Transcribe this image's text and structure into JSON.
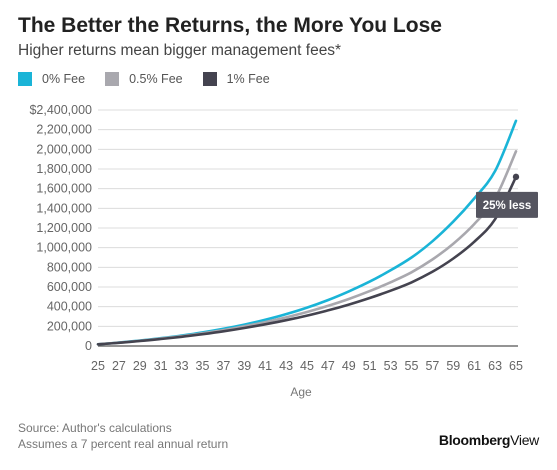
{
  "header": {
    "title": "The Better the Returns, the More You Lose",
    "subtitle": "Higher returns mean bigger management fees*"
  },
  "chart_data": {
    "type": "line",
    "title": "The Better the Returns, the More You Lose",
    "subtitle": "Higher returns mean bigger management fees*",
    "xlabel": "Age",
    "ylabel": "",
    "x": [
      25,
      27,
      29,
      31,
      33,
      35,
      37,
      39,
      41,
      43,
      45,
      47,
      49,
      51,
      53,
      55,
      57,
      59,
      61,
      63,
      65
    ],
    "xlim": [
      25,
      65
    ],
    "ylim": [
      0,
      2400000
    ],
    "y_ticks": [
      0,
      200000,
      400000,
      600000,
      800000,
      1000000,
      1200000,
      1400000,
      1600000,
      1800000,
      2000000,
      2200000,
      2400000
    ],
    "y_tick_labels": [
      "0",
      "200,000",
      "400,000",
      "600,000",
      "800,000",
      "1,000,000",
      "1,200,000",
      "1,400,000",
      "1,600,000",
      "1,800,000",
      "2,000,000",
      "2,200,000",
      "$2,400,000"
    ],
    "x_tick_labels": [
      "25",
      "27",
      "29",
      "31",
      "33",
      "35",
      "37",
      "39",
      "41",
      "43",
      "45",
      "47",
      "49",
      "51",
      "53",
      "55",
      "57",
      "59",
      "61",
      "63",
      "65"
    ],
    "grid": "horizontal",
    "legend_position": "top-left",
    "series": [
      {
        "name": "0% Fee",
        "color": "#1ab4d7",
        "values": [
          17000,
          35000,
          55000,
          79000,
          106000,
          138000,
          175000,
          218000,
          267000,
          324000,
          390000,
          467000,
          555000,
          655000,
          770000,
          900000,
          1065000,
          1265000,
          1500000,
          1780000,
          2290000
        ]
      },
      {
        "name": "0.5% Fee",
        "color": "#a9a8ae",
        "values": [
          17000,
          34000,
          53000,
          75000,
          100000,
          129000,
          162000,
          200000,
          243000,
          291000,
          346000,
          408000,
          478000,
          558000,
          648000,
          750000,
          880000,
          1040000,
          1240000,
          1500000,
          1980000
        ]
      },
      {
        "name": "1% Fee",
        "color": "#44434f",
        "values": [
          17000,
          33000,
          51000,
          71000,
          94000,
          120000,
          149000,
          183000,
          221000,
          262000,
          309000,
          362000,
          421000,
          488000,
          562000,
          647000,
          755000,
          890000,
          1060000,
          1290000,
          1720000
        ]
      }
    ],
    "annotations": [
      {
        "text": "25% less",
        "x": 65,
        "y": 1720000,
        "series": "1% Fee"
      }
    ]
  },
  "footer": {
    "source": "Source: Author's calculations",
    "note": "Assumes a 7 percent real annual return",
    "brand_bold": "Bloomberg",
    "brand_light": "View"
  }
}
